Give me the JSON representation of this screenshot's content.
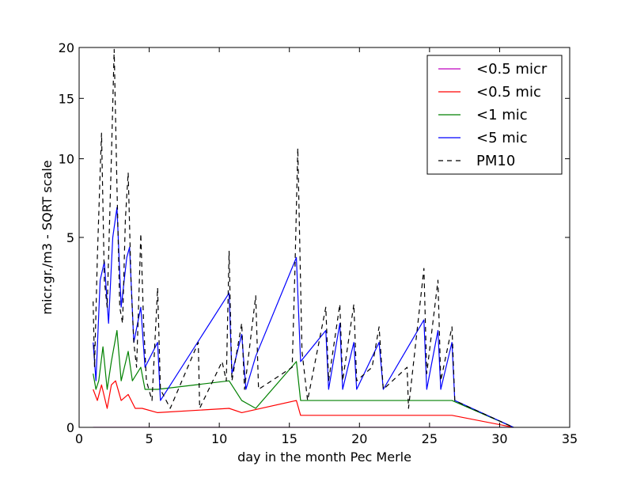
{
  "chart_data": {
    "type": "line",
    "xlabel": "day in the month Pec Merle",
    "ylabel": "micr.gr./m3 - SQRT scale",
    "y_scale": "sqrt",
    "xlim": [
      0,
      35
    ],
    "ylim": [
      0,
      20
    ],
    "x_ticks": [
      0,
      5,
      10,
      15,
      20,
      25,
      30,
      35
    ],
    "y_ticks": [
      0,
      5,
      10,
      15,
      20
    ],
    "grid": false,
    "legend_position": "top-right",
    "series": [
      {
        "name": "<0.5 micr",
        "color": "#bf00bf",
        "dash": "solid",
        "x": [
          1.0,
          31.0
        ],
        "y": [
          0.0,
          0.0
        ]
      },
      {
        "name": "<0.5 mic",
        "color": "#ff0000",
        "dash": "solid",
        "x": [
          1.0,
          1.3,
          1.6,
          2.0,
          2.3,
          2.6,
          3.0,
          3.5,
          4.0,
          4.5,
          5.6,
          10.7,
          11.6,
          15.5,
          15.8,
          17.6,
          18.6,
          19.6,
          21.4,
          24.6,
          25.6,
          26.6,
          31.0
        ],
        "y": [
          0.2,
          0.1,
          0.25,
          0.05,
          0.25,
          0.3,
          0.1,
          0.15,
          0.05,
          0.05,
          0.03,
          0.05,
          0.03,
          0.1,
          0.02,
          0.02,
          0.02,
          0.02,
          0.02,
          0.02,
          0.02,
          0.02,
          0.0
        ]
      },
      {
        "name": "<1 mic",
        "color": "#008000",
        "dash": "solid",
        "x": [
          1.0,
          1.2,
          1.4,
          1.7,
          2.0,
          2.3,
          2.7,
          3.0,
          3.5,
          3.8,
          4.4,
          4.7,
          5.6,
          10.7,
          11.6,
          12.6,
          15.5,
          15.8,
          17.6,
          18.6,
          19.6,
          21.4,
          24.6,
          25.6,
          26.6,
          31.0
        ],
        "y": [
          0.4,
          0.2,
          0.3,
          0.9,
          0.2,
          0.6,
          1.3,
          0.3,
          0.8,
          0.3,
          0.5,
          0.2,
          0.2,
          0.3,
          0.1,
          0.05,
          0.6,
          0.1,
          0.1,
          0.1,
          0.1,
          0.1,
          0.1,
          0.1,
          0.1,
          0.0
        ]
      },
      {
        "name": "<5 mic",
        "color": "#0000ff",
        "dash": "solid",
        "x": [
          1.0,
          1.2,
          1.5,
          1.8,
          2.1,
          2.4,
          2.7,
          3.0,
          3.4,
          3.6,
          3.9,
          4.4,
          4.7,
          5.6,
          5.8,
          10.7,
          10.9,
          11.6,
          11.9,
          12.6,
          15.5,
          15.8,
          17.6,
          17.8,
          18.6,
          18.8,
          19.6,
          19.8,
          21.4,
          21.7,
          24.6,
          24.8,
          25.6,
          25.8,
          26.6,
          26.8,
          31.0
        ],
        "y": [
          1.0,
          0.3,
          3.0,
          3.8,
          1.5,
          5.0,
          6.7,
          2.0,
          4.0,
          4.5,
          1.0,
          2.0,
          0.5,
          1.0,
          0.1,
          2.5,
          0.4,
          1.2,
          0.2,
          0.7,
          4.0,
          0.6,
          1.3,
          0.2,
          1.5,
          0.2,
          1.0,
          0.2,
          1.0,
          0.2,
          1.6,
          0.2,
          1.3,
          0.2,
          1.0,
          0.1,
          0.0
        ]
      },
      {
        "name": "PM10",
        "color": "#000000",
        "dash": "dashed",
        "x": [
          1.0,
          1.1,
          1.3,
          1.5,
          1.6,
          1.8,
          2.0,
          2.3,
          2.5,
          2.7,
          2.9,
          3.1,
          3.3,
          3.5,
          3.7,
          3.9,
          4.1,
          4.3,
          4.4,
          4.6,
          4.8,
          5.2,
          5.6,
          5.8,
          6.5,
          8.5,
          8.6,
          10.2,
          10.5,
          10.7,
          10.9,
          11.6,
          11.8,
          12.6,
          12.8,
          15.2,
          15.4,
          15.6,
          15.9,
          16.3,
          17.6,
          17.8,
          18.6,
          18.8,
          19.6,
          19.8,
          20.9,
          21.4,
          21.7,
          23.4,
          23.5,
          24.6,
          24.8,
          25.6,
          25.8,
          26.6,
          26.8,
          28.0,
          31.0
        ],
        "y": [
          2.2,
          0.5,
          4.0,
          9.0,
          12.0,
          3.0,
          2.0,
          10.0,
          19.8,
          8.0,
          2.0,
          1.5,
          6.0,
          9.0,
          3.0,
          1.0,
          0.5,
          3.0,
          5.2,
          1.5,
          0.3,
          0.1,
          2.7,
          0.2,
          0.05,
          1.0,
          0.05,
          0.6,
          0.3,
          4.3,
          0.3,
          1.5,
          0.2,
          2.4,
          0.2,
          0.5,
          3.5,
          10.8,
          0.8,
          0.1,
          2.0,
          0.3,
          2.1,
          0.3,
          2.1,
          0.3,
          0.5,
          1.4,
          0.2,
          0.5,
          0.05,
          3.5,
          0.4,
          3.0,
          0.3,
          1.4,
          0.1,
          0.05,
          0.0
        ]
      }
    ]
  }
}
